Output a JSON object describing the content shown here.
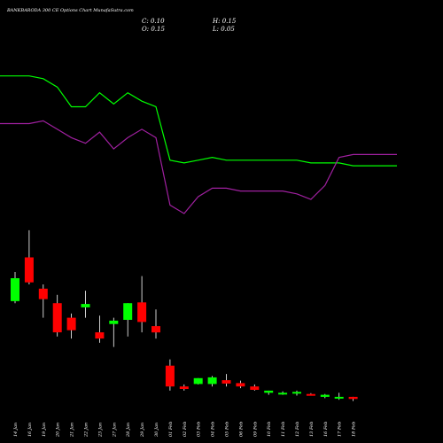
{
  "header": {
    "title": "BANKBARODA 300  CE Options  Chart MunafaSutra.com",
    "c_label": "C: 0.10",
    "o_label": "O: 0.15",
    "h_label": "H: 0.15",
    "l_label": "L: 0.05"
  },
  "colors": {
    "background": "#000000",
    "up": "#00ff00",
    "down": "#ff0000",
    "wick": "#ffffff",
    "line_green": "#00ff00",
    "line_magenta": "#a020a0",
    "text": "#ffffff"
  },
  "chart_data": {
    "type": "candlestick",
    "title": "BANKBARODA 300  CE Options  Chart MunafaSutra.com",
    "x_labels": [
      "14 Jan",
      "16 Jan",
      "19 Jan",
      "20 Jan",
      "21 Jan",
      "22 Jan",
      "23 Jan",
      "27 Jan",
      "28 Jan",
      "29 Jan",
      "30 Jan",
      "01 Feb",
      "02 Feb",
      "03 Feb",
      "04 Feb",
      "05 Feb",
      "06 Feb",
      "09 Feb",
      "10 Feb",
      "11 Feb",
      "12 Feb",
      "13 Feb",
      "16 Feb",
      "17 Feb",
      "18 Feb"
    ],
    "candles": [
      {
        "o": 2.45,
        "h": 3.15,
        "l": 2.4,
        "c": 3.0
      },
      {
        "o": 3.5,
        "h": 4.15,
        "l": 2.85,
        "c": 2.9
      },
      {
        "o": 2.75,
        "h": 2.85,
        "l": 2.05,
        "c": 2.5
      },
      {
        "o": 2.4,
        "h": 2.6,
        "l": 1.6,
        "c": 1.7
      },
      {
        "o": 2.05,
        "h": 2.15,
        "l": 1.55,
        "c": 1.75
      },
      {
        "o": 2.3,
        "h": 2.7,
        "l": 2.05,
        "c": 2.38
      },
      {
        "o": 1.7,
        "h": 2.1,
        "l": 1.45,
        "c": 1.55
      },
      {
        "o": 1.9,
        "h": 2.05,
        "l": 1.35,
        "c": 1.98
      },
      {
        "o": 2.0,
        "h": 2.4,
        "l": 1.6,
        "c": 2.4
      },
      {
        "o": 2.42,
        "h": 3.05,
        "l": 1.7,
        "c": 1.95
      },
      {
        "o": 1.85,
        "h": 2.25,
        "l": 1.55,
        "c": 1.7
      },
      {
        "o": 0.9,
        "h": 1.05,
        "l": 0.3,
        "c": 0.4
      },
      {
        "o": 0.4,
        "h": 0.45,
        "l": 0.3,
        "c": 0.34
      },
      {
        "o": 0.46,
        "h": 0.6,
        "l": 0.45,
        "c": 0.6
      },
      {
        "o": 0.46,
        "h": 0.65,
        "l": 0.4,
        "c": 0.62
      },
      {
        "o": 0.55,
        "h": 0.7,
        "l": 0.4,
        "c": 0.47
      },
      {
        "o": 0.48,
        "h": 0.54,
        "l": 0.36,
        "c": 0.4
      },
      {
        "o": 0.4,
        "h": 0.45,
        "l": 0.3,
        "c": 0.32
      },
      {
        "o": 0.25,
        "h": 0.3,
        "l": 0.2,
        "c": 0.3
      },
      {
        "o": 0.24,
        "h": 0.28,
        "l": 0.2,
        "c": 0.25
      },
      {
        "o": 0.24,
        "h": 0.3,
        "l": 0.18,
        "c": 0.27
      },
      {
        "o": 0.22,
        "h": 0.24,
        "l": 0.18,
        "c": 0.2
      },
      {
        "o": 0.15,
        "h": 0.22,
        "l": 0.12,
        "c": 0.2
      },
      {
        "o": 0.12,
        "h": 0.25,
        "l": 0.08,
        "c": 0.15
      },
      {
        "o": 0.15,
        "h": 0.15,
        "l": 0.05,
        "c": 0.1
      }
    ],
    "green_line": [
      10.5,
      10.5,
      10.4,
      10.1,
      9.4,
      9.4,
      9.9,
      9.5,
      9.9,
      9.6,
      9.4,
      7.5,
      7.4,
      7.5,
      7.6,
      7.5,
      7.5,
      7.5,
      7.5,
      7.5,
      7.5,
      7.4,
      7.4,
      7.4,
      7.3
    ],
    "magenta_line": [
      8.8,
      8.8,
      8.9,
      8.6,
      8.3,
      8.1,
      8.5,
      7.9,
      8.3,
      8.6,
      8.3,
      5.9,
      5.6,
      6.2,
      6.5,
      6.5,
      6.4,
      6.4,
      6.4,
      6.4,
      6.3,
      6.1,
      6.6,
      7.6,
      7.7
    ]
  }
}
